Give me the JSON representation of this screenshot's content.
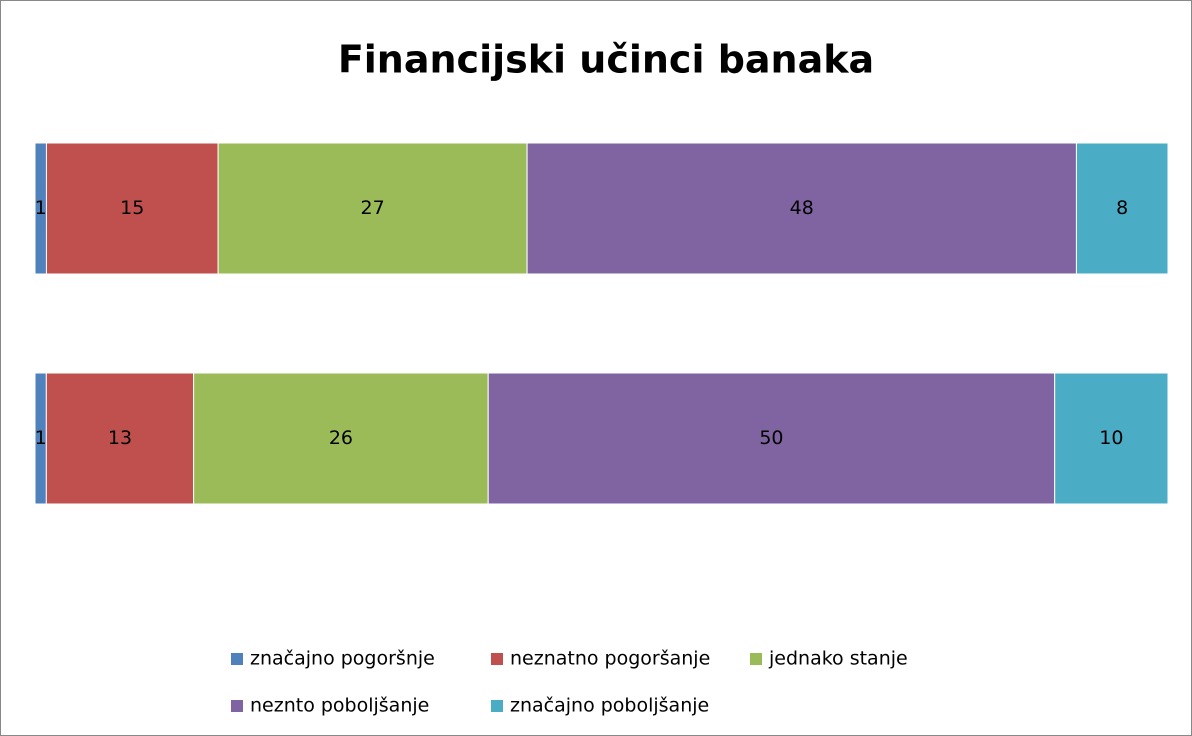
{
  "chart_data": {
    "type": "stacked_percent_barh",
    "title": "Financijski učinci banaka",
    "categories": [
      null,
      null
    ],
    "series": [
      {
        "name": "značajno pogoršnje",
        "color": "#4f81bd",
        "values": [
          1,
          1
        ]
      },
      {
        "name": "neznatno pogoršanje",
        "color": "#c0504d",
        "values": [
          15,
          13
        ]
      },
      {
        "name": "jednako stanje",
        "color": "#9bbb59",
        "values": [
          27,
          26
        ]
      },
      {
        "name": "neznto poboljšanje",
        "color": "#8064a2",
        "values": [
          48,
          50
        ]
      },
      {
        "name": "značajno poboljšanje",
        "color": "#4bacc6",
        "values": [
          8,
          10
        ]
      }
    ],
    "legend": "bottom"
  }
}
